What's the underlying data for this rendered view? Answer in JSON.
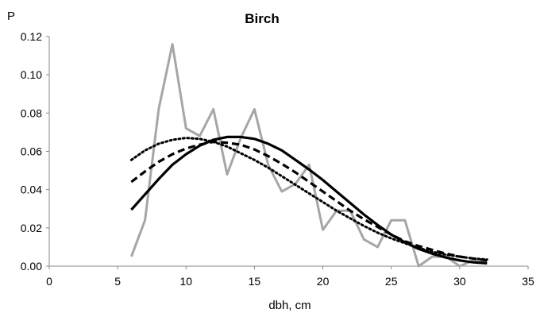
{
  "chart_data": {
    "type": "line",
    "title": "Birch",
    "xlabel": "dbh, cm",
    "ylabel": "P",
    "xlim": [
      0,
      35
    ],
    "ylim": [
      0,
      0.12
    ],
    "x_ticks": [
      "0",
      "5",
      "10",
      "15",
      "20",
      "25",
      "30",
      "35"
    ],
    "y_ticks": [
      "0.00",
      "0.02",
      "0.04",
      "0.06",
      "0.08",
      "0.10",
      "0.12"
    ],
    "grid": false,
    "legend": "none",
    "series": [
      {
        "style": "gray-solid",
        "color": "#a6a6a6",
        "x": [
          6,
          7,
          8,
          9,
          10,
          11,
          12,
          13,
          14,
          15,
          16,
          17,
          18,
          19,
          20,
          21,
          22,
          23,
          24,
          25,
          26,
          27,
          28,
          29,
          30,
          31,
          32
        ],
        "y": [
          0.005,
          0.024,
          0.082,
          0.116,
          0.072,
          0.068,
          0.082,
          0.048,
          0.067,
          0.082,
          0.053,
          0.039,
          0.043,
          0.053,
          0.019,
          0.029,
          0.029,
          0.014,
          0.01,
          0.024,
          0.024,
          0.0,
          0.005,
          0.005,
          0.0,
          0.003,
          0.002
        ]
      },
      {
        "style": "black-solid",
        "color": "#000000",
        "x": [
          6,
          7,
          8,
          9,
          10,
          11,
          12,
          13,
          14,
          15,
          16,
          17,
          18,
          19,
          20,
          21,
          22,
          23,
          24,
          25,
          26,
          27,
          28,
          29,
          30,
          31,
          32
        ],
        "y": [
          0.0295,
          0.0375,
          0.0455,
          0.053,
          0.0585,
          0.063,
          0.066,
          0.0675,
          0.0675,
          0.0665,
          0.064,
          0.0605,
          0.0555,
          0.0505,
          0.045,
          0.039,
          0.033,
          0.027,
          0.0215,
          0.0165,
          0.0125,
          0.009,
          0.0065,
          0.0045,
          0.003,
          0.002,
          0.0015
        ]
      },
      {
        "style": "black-dashed",
        "color": "#000000",
        "x": [
          6,
          7,
          8,
          9,
          10,
          11,
          12,
          13,
          14,
          15,
          16,
          17,
          18,
          19,
          20,
          21,
          22,
          23,
          24,
          25,
          26,
          27,
          28,
          29,
          30,
          31,
          32
        ],
        "y": [
          0.044,
          0.0495,
          0.0545,
          0.0585,
          0.0615,
          0.0635,
          0.065,
          0.0645,
          0.0635,
          0.061,
          0.0575,
          0.0535,
          0.049,
          0.044,
          0.039,
          0.034,
          0.029,
          0.0245,
          0.0205,
          0.0165,
          0.013,
          0.0105,
          0.0085,
          0.0065,
          0.005,
          0.004,
          0.003
        ]
      },
      {
        "style": "black-dotted",
        "color": "#000000",
        "x": [
          6,
          7,
          8,
          9,
          10,
          11,
          12,
          13,
          14,
          15,
          16,
          17,
          18,
          19,
          20,
          21,
          22,
          23,
          24,
          25,
          26,
          27,
          28,
          29,
          30,
          31,
          32
        ],
        "y": [
          0.0555,
          0.0605,
          0.064,
          0.066,
          0.067,
          0.0665,
          0.065,
          0.0625,
          0.059,
          0.0555,
          0.0515,
          0.047,
          0.0425,
          0.038,
          0.0335,
          0.029,
          0.025,
          0.021,
          0.0175,
          0.0145,
          0.012,
          0.0095,
          0.0075,
          0.006,
          0.005,
          0.004,
          0.0035
        ]
      }
    ]
  }
}
